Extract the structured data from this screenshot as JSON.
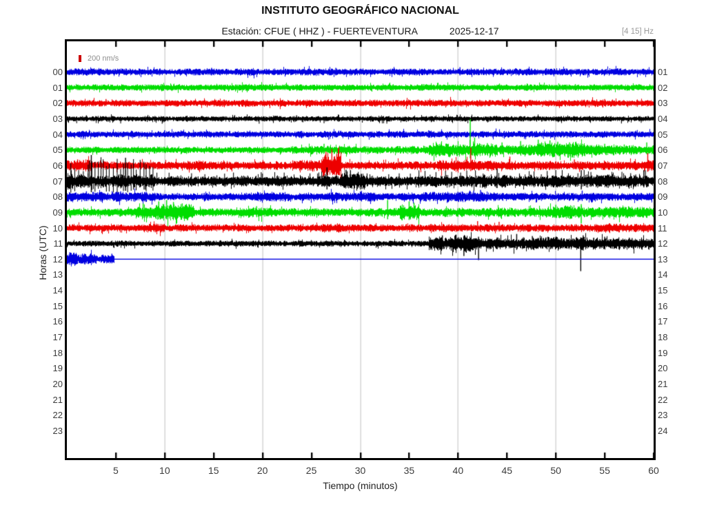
{
  "header": {
    "title": "INSTITUTO GEOGRÁFICO NACIONAL",
    "station_line": "Estación:  CFUE ( HHZ ) - FUERTEVENTURA",
    "date": "2025-12-17",
    "filter": "[4 15] Hz"
  },
  "legend": {
    "scale_label": "200 nm/s",
    "marker_color": "#cc0000"
  },
  "axes": {
    "ylabel": "Horas (UTC)",
    "xlabel": "Tiempo (minutos)",
    "x_ticks": [
      5,
      10,
      15,
      20,
      25,
      30,
      35,
      40,
      45,
      50,
      55,
      60
    ],
    "grid_minutes": [
      10,
      20,
      30,
      40,
      50
    ]
  },
  "chart_data": {
    "type": "line",
    "title": "INSTITUTO GEOGRÁFICO NACIONAL",
    "subtitle": "Estación:  CFUE ( HHZ ) - FUERTEVENTURA  2025-12-17",
    "xlabel": "Tiempo (minutos)",
    "ylabel": "Horas (UTC)",
    "x_range": [
      0,
      60
    ],
    "x_ticks": [
      5,
      10,
      15,
      20,
      25,
      30,
      35,
      40,
      45,
      50,
      55,
      60
    ],
    "grid_minutes": [
      10,
      20,
      30,
      40,
      50
    ],
    "grid_color": "#d2d2d2",
    "tick_color": "#000000",
    "hours_left": [
      "00",
      "01",
      "02",
      "03",
      "04",
      "05",
      "06",
      "07",
      "08",
      "09",
      "10",
      "11",
      "12",
      "13",
      "14",
      "15",
      "16",
      "17",
      "18",
      "19",
      "20",
      "21",
      "22",
      "23"
    ],
    "hours_right": [
      "01",
      "02",
      "03",
      "04",
      "05",
      "06",
      "07",
      "08",
      "09",
      "10",
      "11",
      "12",
      "13",
      "14",
      "15",
      "16",
      "17",
      "18",
      "19",
      "20",
      "21",
      "22",
      "23",
      "24"
    ],
    "amplitude_scale_nm_s": 200,
    "traces": [
      {
        "hour": "00",
        "color": "#0000e0",
        "segments": [
          [
            0,
            60,
            3.4
          ]
        ],
        "spikes": [
          [
            14.8,
            6,
            5
          ],
          [
            27.5,
            6,
            5
          ],
          [
            33.5,
            5,
            4
          ],
          [
            40.2,
            7,
            5
          ],
          [
            47.5,
            5,
            4
          ]
        ]
      },
      {
        "hour": "01",
        "color": "#00dd00",
        "segments": [
          [
            0,
            60,
            3.2
          ]
        ],
        "spikes": [
          [
            21,
            5,
            4
          ],
          [
            36.5,
            5,
            4
          ],
          [
            52,
            5,
            4
          ]
        ]
      },
      {
        "hour": "02",
        "color": "#ee0000",
        "segments": [
          [
            0,
            60,
            3.4
          ]
        ],
        "spikes": [
          [
            4,
            6,
            4
          ],
          [
            18,
            5,
            5
          ],
          [
            31,
            5,
            4
          ],
          [
            55,
            6,
            4
          ]
        ]
      },
      {
        "hour": "03",
        "color": "#000000",
        "segments": [
          [
            0,
            60,
            2.6
          ]
        ],
        "trains": [
          [
            1,
            59,
            2.2,
            3,
            6
          ]
        ],
        "spikes": [
          [
            2,
            5,
            4
          ],
          [
            9,
            4,
            4
          ],
          [
            23.5,
            5,
            3
          ]
        ]
      },
      {
        "hour": "04",
        "color": "#0000e0",
        "segments": [
          [
            0,
            60,
            3.2
          ]
        ],
        "spikes": [
          [
            10,
            6,
            4
          ],
          [
            24,
            5,
            5
          ],
          [
            37,
            6,
            5
          ],
          [
            48,
            5,
            4
          ]
        ]
      },
      {
        "hour": "05",
        "color": "#00dd00",
        "segments": [
          [
            0,
            23,
            3.2
          ],
          [
            23,
            31,
            4.2
          ],
          [
            31,
            37,
            3.8
          ],
          [
            37,
            44,
            6.5
          ],
          [
            44,
            48,
            5.5
          ],
          [
            48,
            53,
            7.5
          ],
          [
            53,
            58,
            5.5
          ],
          [
            58,
            60,
            4.5
          ]
        ],
        "spikes": [
          [
            26.3,
            9,
            5
          ],
          [
            38.3,
            11,
            7
          ],
          [
            39,
            9,
            6
          ],
          [
            41.25,
            45,
            12
          ],
          [
            41.7,
            18,
            9
          ],
          [
            43,
            10,
            6
          ],
          [
            44.5,
            11,
            6
          ],
          [
            46.4,
            13,
            7
          ],
          [
            48.2,
            15,
            8
          ],
          [
            49.4,
            14,
            8
          ],
          [
            50.2,
            12,
            7
          ],
          [
            51.4,
            11,
            6
          ],
          [
            52.1,
            9,
            6
          ],
          [
            55,
            9,
            5
          ],
          [
            57,
            8,
            5
          ],
          [
            59.3,
            11,
            6
          ]
        ]
      },
      {
        "hour": "06",
        "color": "#ee0000",
        "segments": [
          [
            0,
            0.7,
            5
          ],
          [
            0.7,
            2.6,
            6.5
          ],
          [
            2.6,
            13,
            4
          ],
          [
            13,
            14,
            5
          ],
          [
            14,
            23,
            4
          ],
          [
            23,
            26,
            5.5
          ],
          [
            26,
            28,
            10
          ],
          [
            28,
            38,
            4.3
          ],
          [
            38,
            44,
            5.5
          ],
          [
            44,
            59,
            4.3
          ],
          [
            59,
            60,
            6
          ]
        ],
        "spikes": [
          [
            1.1,
            9,
            6
          ],
          [
            1.7,
            8,
            5
          ],
          [
            26.5,
            20,
            9
          ],
          [
            27.1,
            24,
            11
          ],
          [
            27.6,
            17,
            8
          ],
          [
            41.3,
            26,
            8
          ],
          [
            45.3,
            13,
            6
          ],
          [
            51.9,
            9,
            5
          ],
          [
            59.4,
            18,
            9
          ]
        ]
      },
      {
        "hour": "07",
        "color": "#000000",
        "segments": [
          [
            0,
            0.6,
            9
          ],
          [
            0.6,
            9,
            6.5
          ],
          [
            9,
            20,
            5
          ],
          [
            20,
            28,
            5.5
          ],
          [
            28,
            30.5,
            8.5
          ],
          [
            30.5,
            36,
            5
          ],
          [
            36,
            60,
            6
          ]
        ],
        "trains": [
          [
            0.4,
            2.2,
            0.45,
            22,
            14
          ],
          [
            2.3,
            9,
            0.32,
            30,
            15
          ],
          [
            9.2,
            20,
            1.1,
            11,
            7
          ],
          [
            20,
            36,
            0.9,
            12,
            7
          ],
          [
            36,
            59.8,
            0.75,
            14,
            8
          ]
        ],
        "spikes": [
          [
            2.5,
            38,
            16
          ],
          [
            6,
            34,
            14
          ],
          [
            26.6,
            20,
            12
          ],
          [
            29,
            16,
            10
          ],
          [
            44,
            18,
            10
          ],
          [
            52.6,
            16,
            12
          ],
          [
            59,
            16,
            9
          ]
        ]
      },
      {
        "hour": "08",
        "color": "#0000e0",
        "segments": [
          [
            0,
            9,
            4.8
          ],
          [
            9,
            19,
            3.8
          ],
          [
            19,
            23,
            4.6
          ],
          [
            23,
            27,
            3.8
          ],
          [
            27,
            31.5,
            4.6
          ],
          [
            31.5,
            36,
            3.8
          ],
          [
            36,
            38.5,
            5
          ],
          [
            38.5,
            44,
            5.5
          ],
          [
            44,
            60,
            3.9
          ]
        ],
        "spikes": [
          [
            2,
            8,
            6
          ],
          [
            5.5,
            8,
            6
          ],
          [
            8,
            7,
            5
          ],
          [
            41.6,
            9,
            7
          ],
          [
            42.3,
            10,
            7
          ],
          [
            52.7,
            9,
            6
          ]
        ]
      },
      {
        "hour": "09",
        "color": "#00dd00",
        "segments": [
          [
            0,
            7,
            3.8
          ],
          [
            7,
            9,
            6
          ],
          [
            9,
            13,
            8
          ],
          [
            13,
            18,
            4.2
          ],
          [
            18,
            21,
            5.5
          ],
          [
            21,
            34,
            4.2
          ],
          [
            34,
            36,
            7.5
          ],
          [
            36,
            49,
            4.5
          ],
          [
            49,
            52.5,
            6.5
          ],
          [
            52.5,
            55,
            5
          ],
          [
            55,
            60,
            5.5
          ]
        ],
        "spikes": [
          [
            7.8,
            13,
            8
          ],
          [
            9.4,
            16,
            10
          ],
          [
            10.2,
            18,
            10
          ],
          [
            10.9,
            15,
            9
          ],
          [
            11.8,
            13,
            8
          ],
          [
            12.5,
            12,
            7
          ],
          [
            19.4,
            9,
            6
          ],
          [
            32.8,
            18,
            10
          ],
          [
            35,
            16,
            11
          ],
          [
            35.5,
            14,
            9
          ],
          [
            50,
            11,
            8
          ],
          [
            51,
            10,
            6
          ],
          [
            52.6,
            12,
            16
          ],
          [
            57.5,
            8,
            5
          ]
        ]
      },
      {
        "hour": "10",
        "color": "#ee0000",
        "segments": [
          [
            0,
            8,
            3.6
          ],
          [
            8,
            10,
            4.4
          ],
          [
            10,
            26,
            3.6
          ],
          [
            26,
            28,
            4.4
          ],
          [
            28,
            37,
            3.6
          ],
          [
            37,
            40,
            4.2
          ],
          [
            40,
            54,
            3.7
          ],
          [
            54,
            57,
            4.8
          ],
          [
            57,
            60,
            4.2
          ]
        ],
        "spikes": [
          [
            8.5,
            6,
            4
          ],
          [
            27,
            6,
            4
          ],
          [
            42,
            10,
            5
          ],
          [
            44.2,
            9,
            5
          ],
          [
            55.5,
            7,
            5
          ]
        ]
      },
      {
        "hour": "11",
        "color": "#000000",
        "segments": [
          [
            0,
            37,
            2.9
          ],
          [
            37,
            39,
            6.5
          ],
          [
            39,
            42,
            8.5
          ],
          [
            42,
            47,
            5.5
          ],
          [
            47,
            53,
            6.5
          ],
          [
            53,
            60,
            5.8
          ]
        ],
        "trains": [
          [
            37.5,
            59.5,
            1.3,
            8,
            6
          ]
        ],
        "spikes": [
          [
            25,
            5,
            4
          ],
          [
            38.4,
            12,
            8
          ],
          [
            39.8,
            13,
            10
          ],
          [
            40.6,
            11,
            18
          ],
          [
            42.1,
            10,
            24
          ],
          [
            44,
            9,
            8
          ],
          [
            46,
            14,
            9
          ],
          [
            47.6,
            11,
            8
          ],
          [
            49,
            9,
            7
          ],
          [
            52.55,
            9,
            40
          ],
          [
            52.8,
            12,
            10
          ],
          [
            55,
            10,
            7
          ],
          [
            57.8,
            8,
            6
          ]
        ]
      },
      {
        "hour": "12",
        "color": "#0000e0",
        "segments": [
          [
            0,
            1,
            7.5
          ],
          [
            1,
            3,
            5.5
          ],
          [
            3,
            4.8,
            4
          ]
        ],
        "spikes": [
          [
            0.3,
            10,
            8
          ],
          [
            0.7,
            9,
            7
          ],
          [
            1.6,
            8,
            6
          ],
          [
            2.8,
            7,
            5
          ],
          [
            4.6,
            8,
            6
          ]
        ],
        "flat": [
          4.8,
          60
        ]
      }
    ]
  }
}
